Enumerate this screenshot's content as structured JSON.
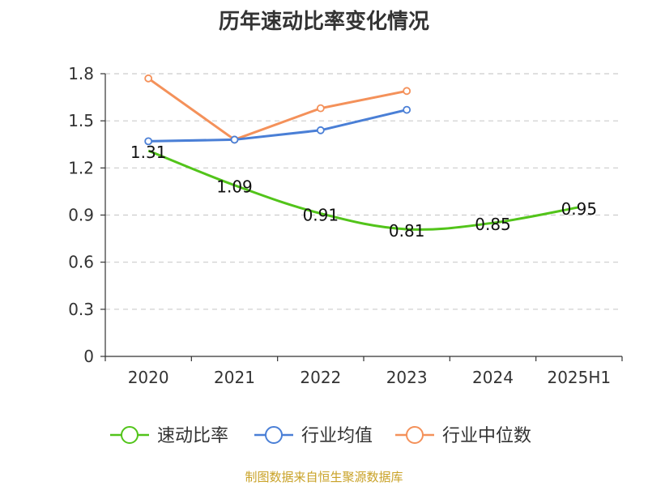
{
  "chart_data": {
    "type": "line",
    "title": "历年速动比率变化情况",
    "categories": [
      "2020",
      "2021",
      "2022",
      "2023",
      "2024",
      "2025H1"
    ],
    "ylim": [
      0,
      1.8
    ],
    "yticks": [
      "0",
      "0.3",
      "0.6",
      "0.9",
      "1.2",
      "1.5",
      "1.8"
    ],
    "grid": true,
    "legend_position": "bottom",
    "series": [
      {
        "name": "速动比率",
        "color": "#52c41a",
        "values": [
          1.31,
          1.09,
          0.91,
          0.81,
          0.85,
          0.95
        ],
        "labels": [
          "1.31",
          "1.09",
          "0.91",
          "0.81",
          "0.85",
          "0.95"
        ]
      },
      {
        "name": "行业均值",
        "color": "#4a7fd6",
        "values": [
          1.37,
          1.38,
          1.44,
          1.57,
          null,
          null
        ]
      },
      {
        "name": "行业中位数",
        "color": "#f4915a",
        "values": [
          1.77,
          1.38,
          1.58,
          1.69,
          null,
          null
        ]
      }
    ]
  },
  "footer": {
    "source": "制图数据来自恒生聚源数据库"
  }
}
